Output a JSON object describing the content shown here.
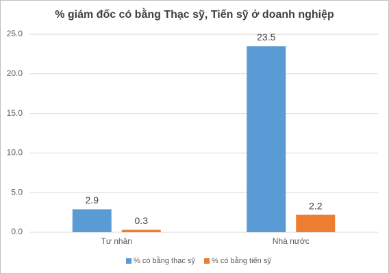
{
  "chart_data": {
    "type": "bar",
    "title": "% giám đốc có bằng Thạc sỹ, Tiến sỹ ở doanh nghiệp",
    "categories": [
      "Tư nhân",
      "Nhà nước"
    ],
    "series": [
      {
        "name": "% có bằng thạc sỹ",
        "color": "#5b9bd5",
        "values": [
          2.9,
          23.5
        ]
      },
      {
        "name": "% có bằng tiến sỹ",
        "color": "#ed7d31",
        "values": [
          0.3,
          2.2
        ]
      }
    ],
    "ylim": [
      0,
      25
    ],
    "yticks": [
      {
        "value": 0,
        "label": "0.0"
      },
      {
        "value": 5,
        "label": "5.0"
      },
      {
        "value": 10,
        "label": "10.0"
      },
      {
        "value": 15,
        "label": "15.0"
      },
      {
        "value": 20,
        "label": "20.0"
      },
      {
        "value": 25,
        "label": "25.0"
      }
    ],
    "grid": true,
    "legend": "bottom"
  }
}
